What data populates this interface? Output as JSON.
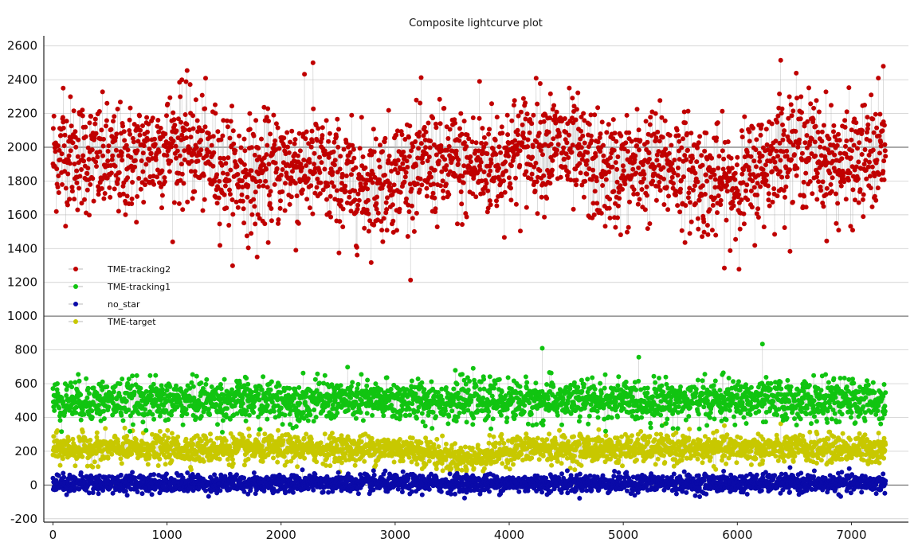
{
  "chart_data": {
    "type": "scatter",
    "title": "Composite lightcurve plot",
    "xlabel": "",
    "ylabel": "",
    "xlim": [
      -80,
      7500
    ],
    "ylim": [
      -220,
      2660
    ],
    "x_ticks": [
      0,
      1000,
      2000,
      3000,
      4000,
      5000,
      6000,
      7000
    ],
    "x_tick_labels": [
      "0",
      "1000",
      "2000",
      "3000",
      "4000",
      "5000",
      "6000",
      "7000"
    ],
    "y_ticks": [
      -200,
      0,
      200,
      400,
      600,
      800,
      1000,
      1200,
      1400,
      1600,
      1800,
      2000,
      2200,
      2400,
      2600
    ],
    "y_tick_labels": [
      "-200",
      "0",
      "200",
      "400",
      "600",
      "800",
      "1000",
      "1200",
      "1400",
      "1600",
      "1800",
      "2000",
      "2200",
      "2400",
      "2600"
    ],
    "grid": true,
    "legend_position": "left-middle",
    "series": [
      {
        "name": "TME-tracking2",
        "color": "#c00000",
        "style": "line-with-markers",
        "n_points": 7300,
        "x_range": [
          0,
          7300
        ],
        "mean": 1900,
        "spread": 220,
        "notable_points": [
          [
            90,
            2350
          ],
          [
            1130,
            2400
          ],
          [
            1790,
            1350
          ],
          [
            2130,
            1390
          ],
          [
            2280,
            2500
          ],
          [
            3740,
            2390
          ],
          [
            6380,
            2515
          ],
          [
            7280,
            2480
          ]
        ]
      },
      {
        "name": "TME-tracking1",
        "color": "#11c411",
        "style": "line-with-markers",
        "n_points": 7300,
        "x_range": [
          0,
          7300
        ],
        "mean": 500,
        "spread": 80,
        "notable_points": [
          [
            4290,
            810
          ],
          [
            6220,
            835
          ]
        ]
      },
      {
        "name": "no_star",
        "color": "#0a0aa8",
        "style": "line-with-markers",
        "n_points": 7300,
        "x_range": [
          0,
          7300
        ],
        "mean": 10,
        "spread": 35
      },
      {
        "name": "TME-target",
        "color": "#c8c800",
        "style": "line-with-markers",
        "n_points": 7300,
        "x_range": [
          0,
          7300
        ],
        "mean": 215,
        "spread": 55
      }
    ]
  }
}
